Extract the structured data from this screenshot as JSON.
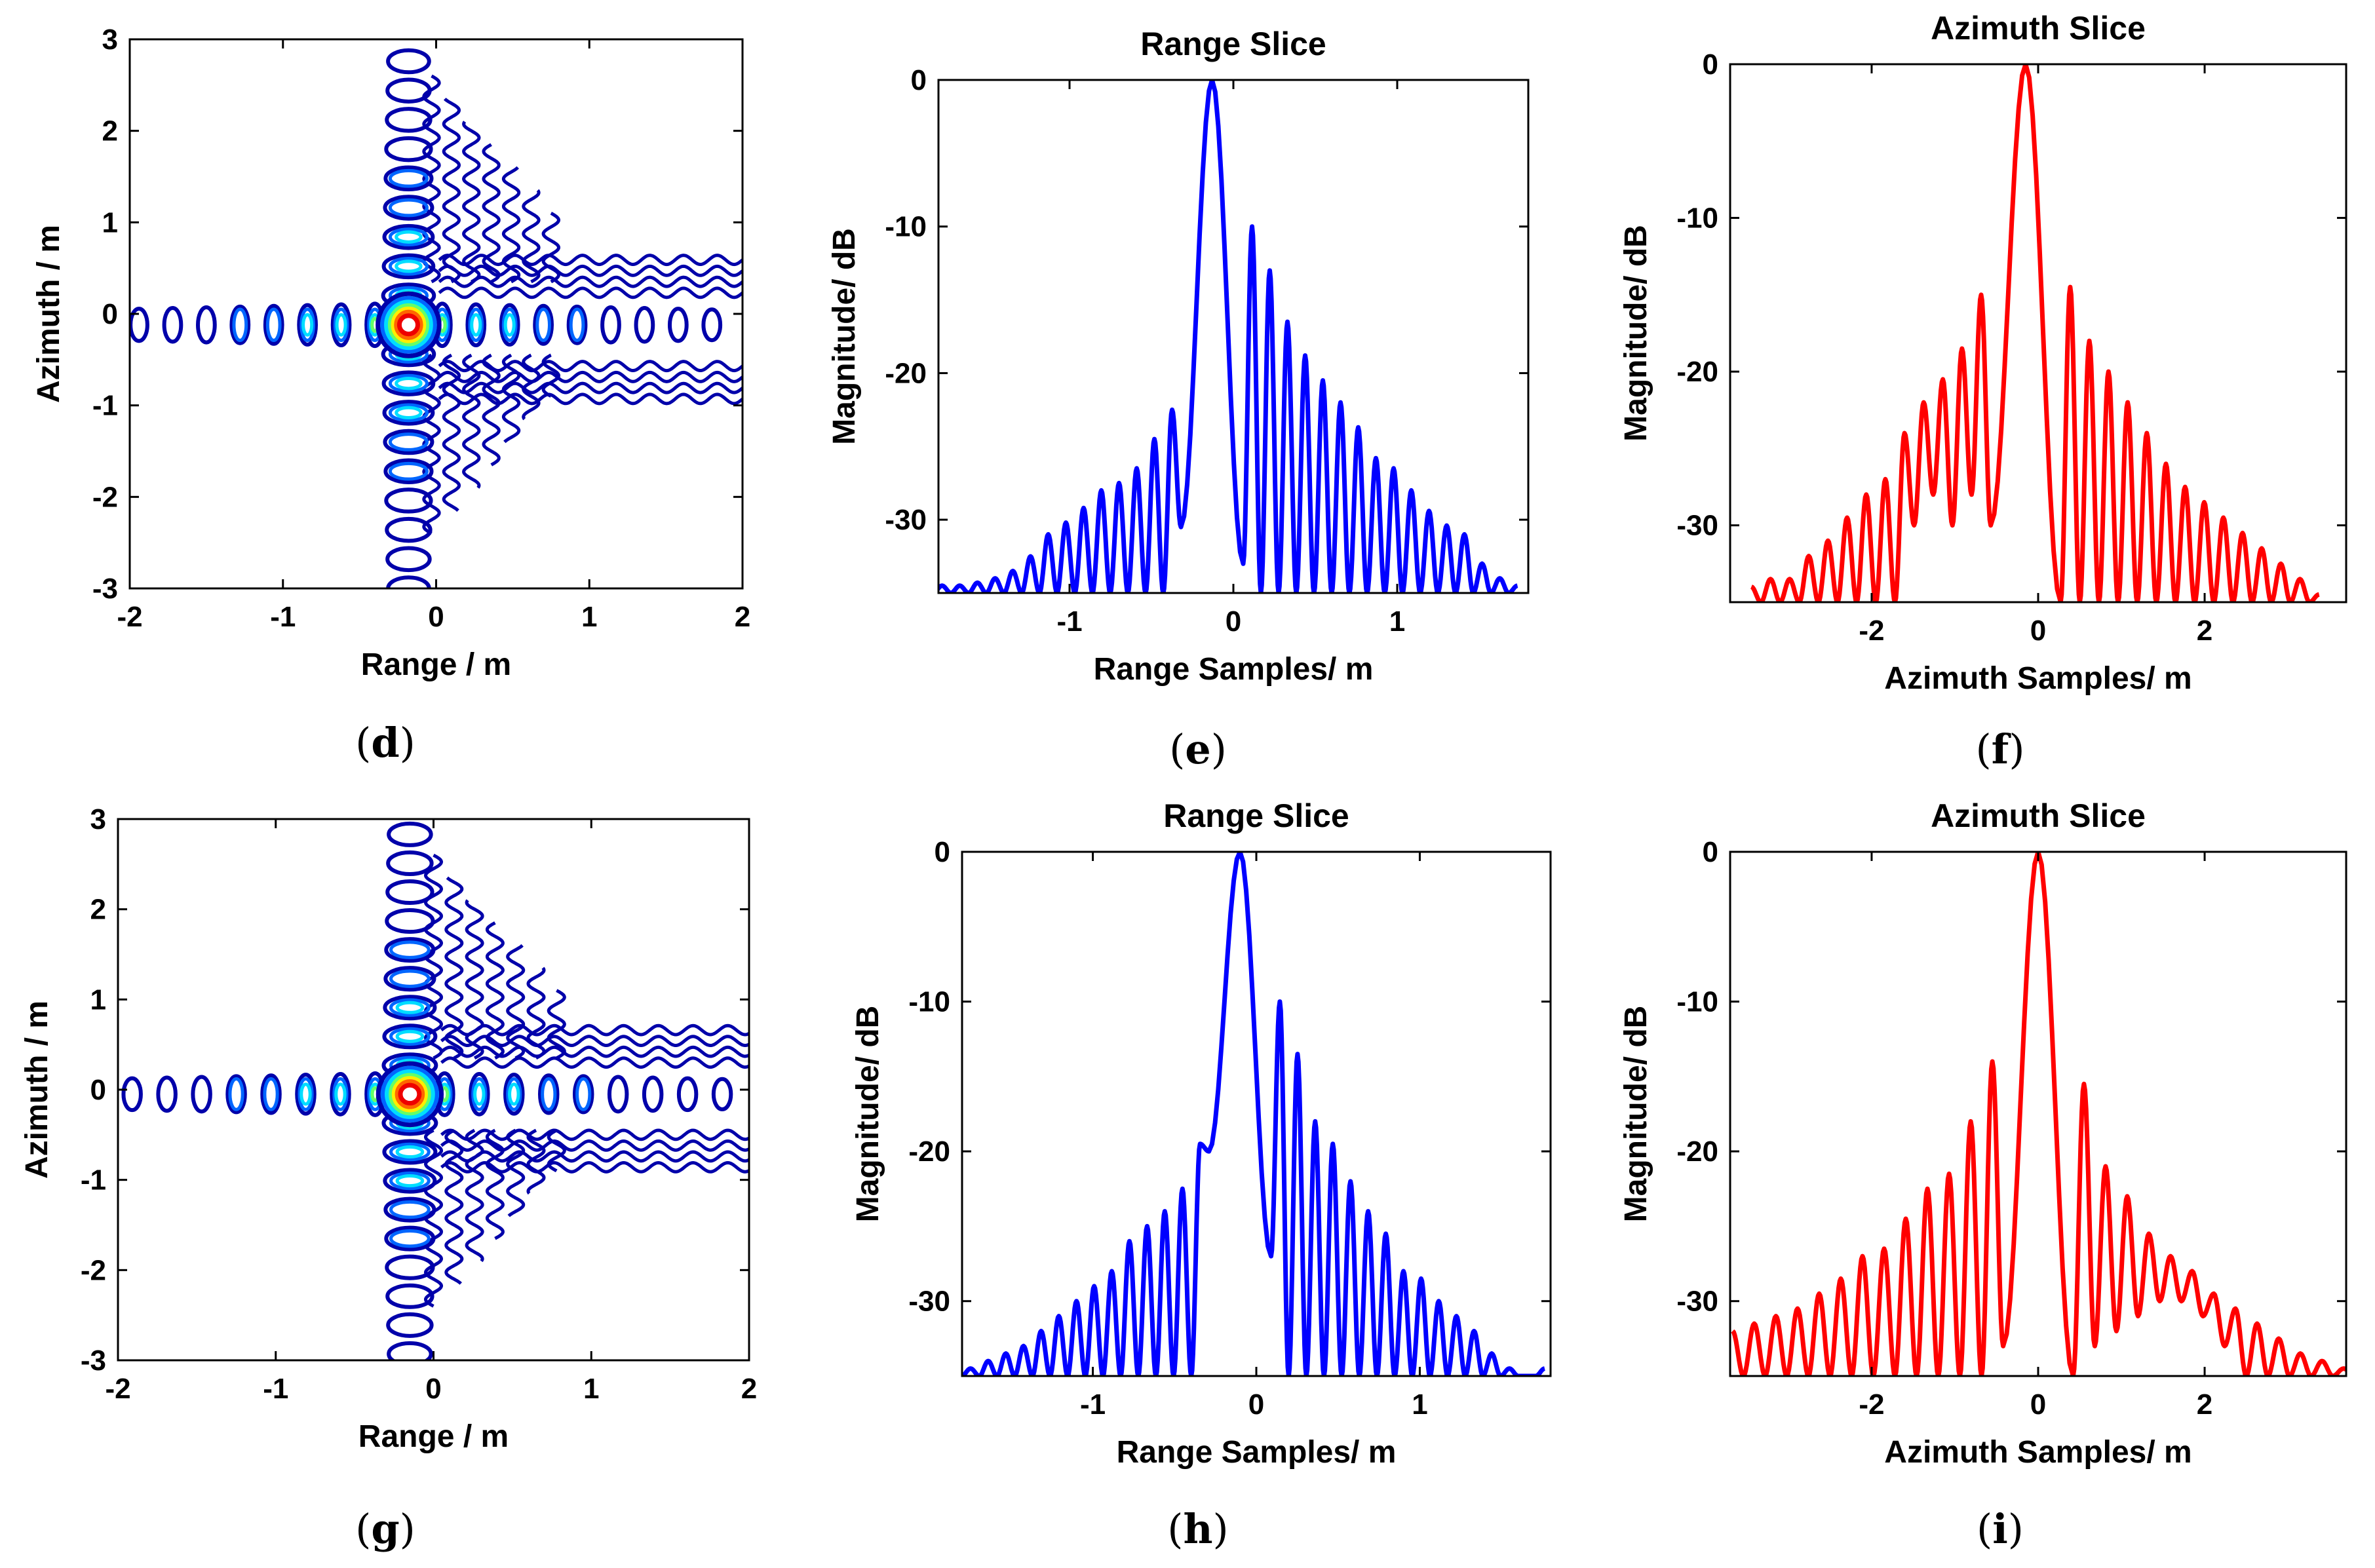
{
  "panels": [
    {
      "id": "d",
      "caption": "(d)",
      "caption_open": "(",
      "caption_letter": "d",
      "caption_close": ")"
    },
    {
      "id": "e",
      "caption": "(e)",
      "caption_open": "(",
      "caption_letter": "e",
      "caption_close": ")"
    },
    {
      "id": "f",
      "caption": "(f)",
      "caption_open": "(",
      "caption_letter": "f",
      "caption_close": ")"
    },
    {
      "id": "g",
      "caption": "(g)",
      "caption_open": "(",
      "caption_letter": "g",
      "caption_close": ")"
    },
    {
      "id": "h",
      "caption": "(h)",
      "caption_open": "(",
      "caption_letter": "h",
      "caption_close": ")"
    },
    {
      "id": "i",
      "caption": "(i)",
      "caption_open": "(",
      "caption_letter": "i",
      "caption_close": ")"
    }
  ],
  "chart_data": [
    {
      "panel": "d",
      "type": "contour",
      "title": "",
      "xlabel": "Range / m",
      "ylabel": "Azimuth / m",
      "xlim": [
        -2,
        2
      ],
      "ylim": [
        -3,
        3
      ],
      "xticks": [
        -2,
        -1,
        0,
        1,
        2
      ],
      "yticks": [
        -3,
        -2,
        -1,
        0,
        1,
        2,
        3
      ],
      "peak": {
        "x": -0.18,
        "y": -0.12
      },
      "contour_levels_colors": [
        "#0000aa",
        "#0066ff",
        "#00ddff",
        "#66ff66",
        "#ffee00",
        "#ff6600",
        "#ee0000"
      ],
      "range_sidelobe_spacing_m": 0.22,
      "azimuth_sidelobe_spacing_m": 0.32,
      "grid": false
    },
    {
      "panel": "e",
      "type": "line",
      "title": "Range Slice",
      "xlabel": "Range Samples/ m",
      "ylabel": "Magnitude/ dB",
      "xlim": [
        -1.8,
        1.8
      ],
      "ylim": [
        -35,
        0
      ],
      "xticks": [
        -1,
        0,
        1
      ],
      "yticks": [
        -30,
        -20,
        -10,
        0
      ],
      "color": "#0000ff",
      "peak_x": -0.13,
      "mainlobe_halfwidth": 0.19,
      "lobe_spacing": 0.108,
      "peaks_left": [
        -22.5,
        -24.5,
        -26.5,
        -27.5,
        -28.0,
        -29.2,
        -30.2,
        -31.0,
        -32.5,
        -33.5,
        -34.0,
        -34.3,
        -34.5,
        -34.5,
        -34.5
      ],
      "peaks_right": [
        -10,
        -13,
        -16.5,
        -18.8,
        -20.5,
        -22,
        -23.7,
        -25.8,
        -26.5,
        -28,
        -29.4,
        -30.4,
        -31,
        -33,
        -34,
        -34.5
      ],
      "nulls_left": [
        -30.5,
        -35,
        -35,
        -35,
        -35,
        -35,
        -35,
        -35,
        -35,
        -35,
        -35,
        -35,
        -35,
        -35,
        -35
      ],
      "nulls_right": [
        -33,
        -35,
        -35,
        -35,
        -35,
        -35,
        -35,
        -35,
        -35,
        -35,
        -35,
        -35,
        -35,
        -35,
        -35,
        -35
      ],
      "grid": false
    },
    {
      "panel": "f",
      "type": "line",
      "title": "Azimuth Slice",
      "xlabel": "Azimuth Samples/ m",
      "ylabel": "Magnitude/ dB",
      "xlim": [
        -3.7,
        3.7
      ],
      "ylim": [
        -35,
        0
      ],
      "xticks": [
        -2,
        0,
        2
      ],
      "yticks": [
        -30,
        -20,
        -10,
        0
      ],
      "color": "#ff0000",
      "peak_x": -0.15,
      "mainlobe_halfwidth": 0.42,
      "lobe_spacing": 0.23,
      "peaks_left": [
        -15,
        -18.5,
        -20.5,
        -22,
        -24,
        -27,
        -28,
        -29.5,
        -31,
        -32,
        -33.5,
        -33.5,
        -34
      ],
      "peaks_right": [
        -14.5,
        -18,
        -20,
        -22,
        -24,
        -26,
        -27.5,
        -28.5,
        -29.5,
        -30.5,
        -31.5,
        -32.5,
        -33.5,
        -34.5
      ],
      "nulls_left": [
        -30,
        -28,
        -30,
        -28,
        -30,
        -35,
        -35,
        -35,
        -35,
        -35,
        -35,
        -35,
        -35
      ],
      "nulls_right": [
        -35,
        -35,
        -35,
        -35,
        -35,
        -35,
        -35,
        -35,
        -35,
        -35,
        -35,
        -35,
        -35,
        -35
      ],
      "grid": false
    },
    {
      "panel": "g",
      "type": "contour",
      "title": "",
      "xlabel": "Range / m",
      "ylabel": "Azimuth / m",
      "xlim": [
        -2,
        2
      ],
      "ylim": [
        -3,
        3
      ],
      "xticks": [
        -2,
        -1,
        0,
        1,
        2
      ],
      "yticks": [
        -3,
        -2,
        -1,
        0,
        1,
        2,
        3
      ],
      "peak": {
        "x": -0.15,
        "y": -0.05
      },
      "contour_levels_colors": [
        "#0000aa",
        "#0066ff",
        "#00ddff",
        "#66ff66",
        "#ffee00",
        "#ff6600",
        "#ee0000"
      ],
      "range_sidelobe_spacing_m": 0.22,
      "azimuth_sidelobe_spacing_m": 0.32,
      "grid": false
    },
    {
      "panel": "h",
      "type": "line",
      "title": "Range Slice",
      "xlabel": "Range Samples/ m",
      "ylabel": "Magnitude/ dB",
      "xlim": [
        -1.8,
        1.8
      ],
      "ylim": [
        -35,
        0
      ],
      "xticks": [
        -1,
        0,
        1
      ],
      "yticks": [
        -30,
        -20,
        -10,
        0
      ],
      "color": "#0000ff",
      "peak_x": -0.1,
      "mainlobe_halfwidth": 0.19,
      "lobe_spacing": 0.108,
      "peaks_left": [
        -19.5,
        -22.5,
        -24,
        -25,
        -26,
        -28,
        -29,
        -30,
        -31,
        -32,
        -33,
        -33.5,
        -34,
        -34.5,
        -34.5
      ],
      "peaks_right": [
        -10,
        -13.5,
        -18,
        -19.5,
        -22,
        -24,
        -25.5,
        -28,
        -28.5,
        -30,
        -31,
        -32,
        -33.5,
        -34.5,
        -35,
        -34.5
      ],
      "nulls_left": [
        -20,
        -35,
        -35,
        -35,
        -35,
        -35,
        -35,
        -35,
        -35,
        -35,
        -35,
        -35,
        -35,
        -35,
        -35
      ],
      "nulls_right": [
        -27,
        -35,
        -35,
        -35,
        -35,
        -35,
        -35,
        -35,
        -35,
        -35,
        -35,
        -35,
        -35,
        -35,
        -35,
        -35
      ],
      "grid": false
    },
    {
      "panel": "i",
      "type": "line",
      "title": "Azimuth Slice",
      "xlabel": "Azimuth Samples/ m",
      "ylabel": "Magnitude/ dB",
      "xlim": [
        -3.7,
        3.7
      ],
      "ylim": [
        -35,
        0
      ],
      "xticks": [
        -2,
        0,
        2
      ],
      "yticks": [
        -30,
        -20,
        -10,
        0
      ],
      "color": "#ff0000",
      "peak_x": 0.0,
      "mainlobe_halfwidth": 0.42,
      "lobe_spacing": 0.26,
      "peaks_left": [
        -14,
        -18,
        -21.5,
        -22.5,
        -24.5,
        -26.5,
        -27,
        -28.5,
        -29.5,
        -30.5,
        -31,
        -31.5,
        -32
      ],
      "peaks_right": [
        -15.5,
        -21,
        -23,
        -25.5,
        -27,
        -28,
        -29.5,
        -30.5,
        -31.5,
        -32.5,
        -33.5,
        -34,
        -34.5,
        -35
      ],
      "nulls_left": [
        -33,
        -35,
        -35,
        -35,
        -35,
        -35,
        -35,
        -35,
        -35,
        -35,
        -35,
        -35,
        -35
      ],
      "nulls_right": [
        -35,
        -33,
        -32,
        -31,
        -30,
        -30,
        -31,
        -33,
        -35,
        -35,
        -35,
        -35,
        -35,
        -35
      ],
      "grid": false
    }
  ]
}
